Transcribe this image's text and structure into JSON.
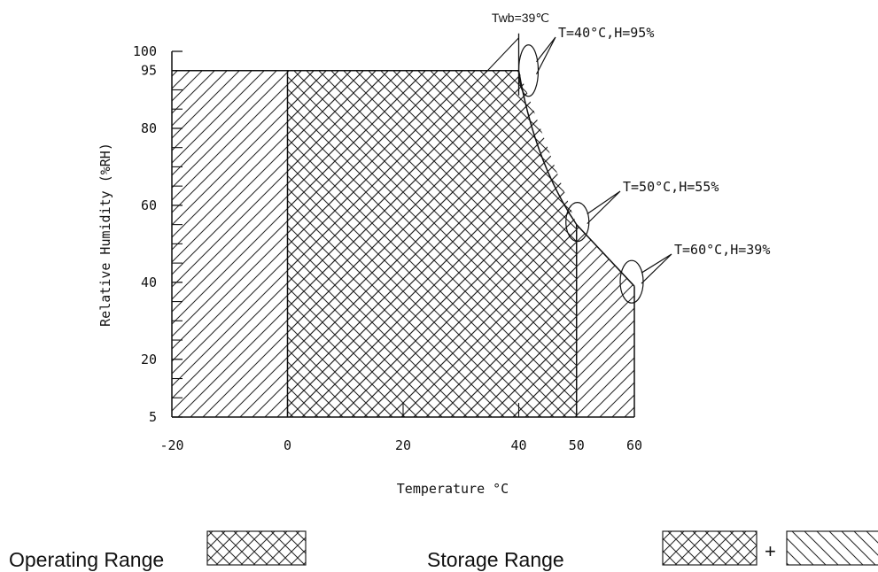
{
  "chart_data": {
    "type": "area",
    "xlabel": "Temperature °C",
    "ylabel": "Relative Humidity (%RH)",
    "xlim": [
      -20,
      60
    ],
    "ylim": [
      5,
      100
    ],
    "x_ticks": [
      -20,
      0,
      20,
      40,
      50,
      60
    ],
    "y_ticks": [
      5,
      20,
      40,
      60,
      80,
      95,
      100
    ],
    "y_minor_ticks": [
      10,
      15,
      25,
      30,
      35,
      45,
      50,
      55,
      65,
      70,
      75,
      85,
      90
    ],
    "series": [
      {
        "name": "Operating Range",
        "x": [
          0,
          40,
          50,
          50,
          0
        ],
        "y": [
          95,
          95,
          55,
          5,
          5
        ]
      },
      {
        "name": "Storage Range",
        "x": [
          -20,
          40,
          50,
          60,
          60,
          -20
        ],
        "y": [
          95,
          95,
          55,
          39,
          5,
          5
        ]
      }
    ],
    "annotations": [
      {
        "text": "Twb=39℃",
        "x": 40,
        "y": 100
      },
      {
        "text": "T=40°C,H=95%",
        "x": 40,
        "y": 95
      },
      {
        "text": "T=50°C,H=55%",
        "x": 50,
        "y": 55
      },
      {
        "text": "T=60°C,H=39%",
        "x": 60,
        "y": 39
      }
    ],
    "legend": {
      "placement": "bottom",
      "operating_label": "Operating Range",
      "storage_label": "Storage Range",
      "plus": "+"
    }
  }
}
